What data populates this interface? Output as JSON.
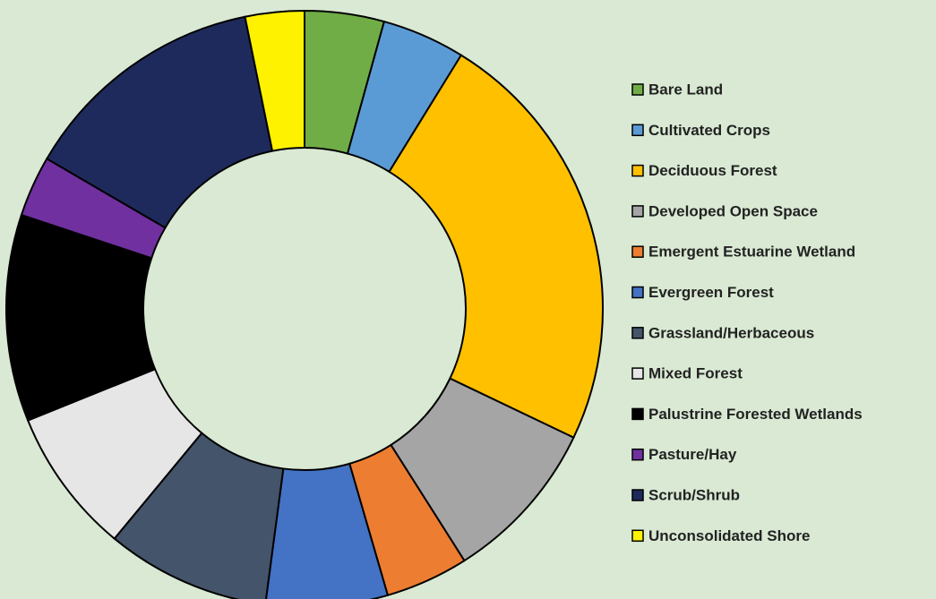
{
  "chart_data": {
    "type": "donut",
    "categories": [
      "Bare Land",
      "Cultivated Crops",
      "Deciduous Forest",
      "Developed Open Space",
      "Emergent Estuarine Wetland",
      "Evergreen Forest",
      "Grassland/Herbaceous",
      "Mixed Forest",
      "Palustrine Forested Wetlands",
      "Pasture/Hay",
      "Scrub/Shrub",
      "Unconsolidated Shore"
    ],
    "values": [
      4.3,
      4.5,
      23.3,
      8.9,
      4.5,
      6.6,
      8.9,
      7.9,
      11.2,
      3.3,
      13.4,
      3.2
    ],
    "colors": [
      "#70ad47",
      "#5b9bd5",
      "#ffc000",
      "#a5a5a5",
      "#ed7d31",
      "#4472c4",
      "#44546a",
      "#e7e6e6",
      "#000000",
      "#7030a0",
      "#1f2a5c",
      "#fff200"
    ],
    "legend": "right"
  }
}
